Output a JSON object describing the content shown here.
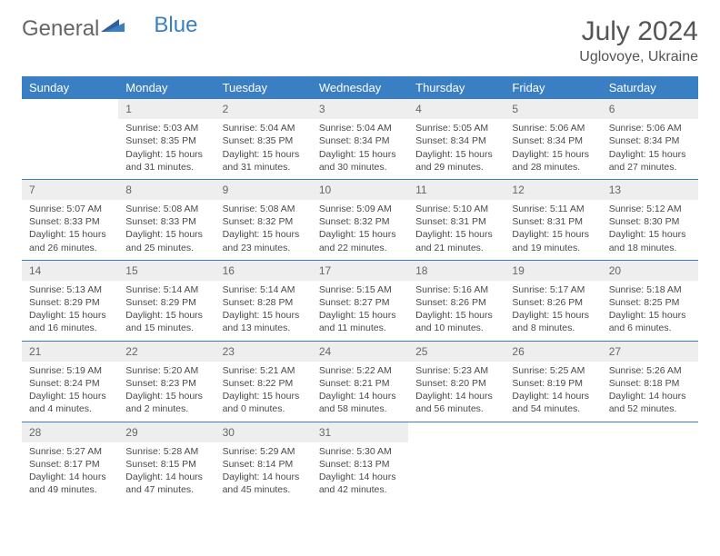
{
  "brand": {
    "part1": "General",
    "part2": "Blue"
  },
  "title": "July 2024",
  "location": "Uglovoye, Ukraine",
  "colors": {
    "header_bg": "#3a7fc4",
    "header_text": "#ffffff",
    "daynum_bg": "#eeeeee",
    "border": "#3a7fc4",
    "text": "#4a4a4a"
  },
  "day_headers": [
    "Sunday",
    "Monday",
    "Tuesday",
    "Wednesday",
    "Thursday",
    "Friday",
    "Saturday"
  ],
  "weeks": [
    [
      {
        "empty": true
      },
      {
        "day": "1",
        "sunrise": "5:03 AM",
        "sunset": "8:35 PM",
        "daylight": "15 hours and 31 minutes."
      },
      {
        "day": "2",
        "sunrise": "5:04 AM",
        "sunset": "8:35 PM",
        "daylight": "15 hours and 31 minutes."
      },
      {
        "day": "3",
        "sunrise": "5:04 AM",
        "sunset": "8:34 PM",
        "daylight": "15 hours and 30 minutes."
      },
      {
        "day": "4",
        "sunrise": "5:05 AM",
        "sunset": "8:34 PM",
        "daylight": "15 hours and 29 minutes."
      },
      {
        "day": "5",
        "sunrise": "5:06 AM",
        "sunset": "8:34 PM",
        "daylight": "15 hours and 28 minutes."
      },
      {
        "day": "6",
        "sunrise": "5:06 AM",
        "sunset": "8:34 PM",
        "daylight": "15 hours and 27 minutes."
      }
    ],
    [
      {
        "day": "7",
        "sunrise": "5:07 AM",
        "sunset": "8:33 PM",
        "daylight": "15 hours and 26 minutes."
      },
      {
        "day": "8",
        "sunrise": "5:08 AM",
        "sunset": "8:33 PM",
        "daylight": "15 hours and 25 minutes."
      },
      {
        "day": "9",
        "sunrise": "5:08 AM",
        "sunset": "8:32 PM",
        "daylight": "15 hours and 23 minutes."
      },
      {
        "day": "10",
        "sunrise": "5:09 AM",
        "sunset": "8:32 PM",
        "daylight": "15 hours and 22 minutes."
      },
      {
        "day": "11",
        "sunrise": "5:10 AM",
        "sunset": "8:31 PM",
        "daylight": "15 hours and 21 minutes."
      },
      {
        "day": "12",
        "sunrise": "5:11 AM",
        "sunset": "8:31 PM",
        "daylight": "15 hours and 19 minutes."
      },
      {
        "day": "13",
        "sunrise": "5:12 AM",
        "sunset": "8:30 PM",
        "daylight": "15 hours and 18 minutes."
      }
    ],
    [
      {
        "day": "14",
        "sunrise": "5:13 AM",
        "sunset": "8:29 PM",
        "daylight": "15 hours and 16 minutes."
      },
      {
        "day": "15",
        "sunrise": "5:14 AM",
        "sunset": "8:29 PM",
        "daylight": "15 hours and 15 minutes."
      },
      {
        "day": "16",
        "sunrise": "5:14 AM",
        "sunset": "8:28 PM",
        "daylight": "15 hours and 13 minutes."
      },
      {
        "day": "17",
        "sunrise": "5:15 AM",
        "sunset": "8:27 PM",
        "daylight": "15 hours and 11 minutes."
      },
      {
        "day": "18",
        "sunrise": "5:16 AM",
        "sunset": "8:26 PM",
        "daylight": "15 hours and 10 minutes."
      },
      {
        "day": "19",
        "sunrise": "5:17 AM",
        "sunset": "8:26 PM",
        "daylight": "15 hours and 8 minutes."
      },
      {
        "day": "20",
        "sunrise": "5:18 AM",
        "sunset": "8:25 PM",
        "daylight": "15 hours and 6 minutes."
      }
    ],
    [
      {
        "day": "21",
        "sunrise": "5:19 AM",
        "sunset": "8:24 PM",
        "daylight": "15 hours and 4 minutes."
      },
      {
        "day": "22",
        "sunrise": "5:20 AM",
        "sunset": "8:23 PM",
        "daylight": "15 hours and 2 minutes."
      },
      {
        "day": "23",
        "sunrise": "5:21 AM",
        "sunset": "8:22 PM",
        "daylight": "15 hours and 0 minutes."
      },
      {
        "day": "24",
        "sunrise": "5:22 AM",
        "sunset": "8:21 PM",
        "daylight": "14 hours and 58 minutes."
      },
      {
        "day": "25",
        "sunrise": "5:23 AM",
        "sunset": "8:20 PM",
        "daylight": "14 hours and 56 minutes."
      },
      {
        "day": "26",
        "sunrise": "5:25 AM",
        "sunset": "8:19 PM",
        "daylight": "14 hours and 54 minutes."
      },
      {
        "day": "27",
        "sunrise": "5:26 AM",
        "sunset": "8:18 PM",
        "daylight": "14 hours and 52 minutes."
      }
    ],
    [
      {
        "day": "28",
        "sunrise": "5:27 AM",
        "sunset": "8:17 PM",
        "daylight": "14 hours and 49 minutes."
      },
      {
        "day": "29",
        "sunrise": "5:28 AM",
        "sunset": "8:15 PM",
        "daylight": "14 hours and 47 minutes."
      },
      {
        "day": "30",
        "sunrise": "5:29 AM",
        "sunset": "8:14 PM",
        "daylight": "14 hours and 45 minutes."
      },
      {
        "day": "31",
        "sunrise": "5:30 AM",
        "sunset": "8:13 PM",
        "daylight": "14 hours and 42 minutes."
      },
      {
        "empty": true
      },
      {
        "empty": true
      },
      {
        "empty": true
      }
    ]
  ],
  "labels": {
    "sunrise": "Sunrise: ",
    "sunset": "Sunset: ",
    "daylight": "Daylight: "
  }
}
